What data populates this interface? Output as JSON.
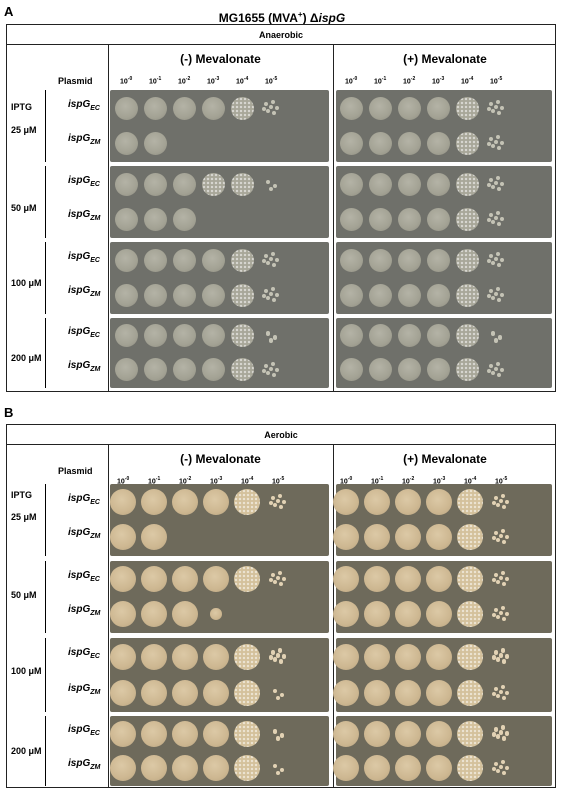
{
  "figure": {
    "panelA": {
      "letter": "A",
      "strain_title": "MG1655 (MVA",
      "strain_title_sup": "+",
      "strain_title_rest": ") ",
      "strain_delta": "Δ",
      "strain_gene": "ispG",
      "condition": "Anaerobic",
      "minus_mev": "(-) Mevalonate",
      "plus_mev": "(+) Mevalonate"
    },
    "panelB": {
      "letter": "B",
      "condition": "Aerobic",
      "minus_mev": "(-) Mevalonate",
      "plus_mev": "(+) Mevalonate"
    },
    "plasmid_label": "Plasmid",
    "iptg_label": "IPTG",
    "dilutions": [
      "10",
      "10",
      "10",
      "10",
      "10",
      "10"
    ],
    "dilution_exponents": [
      "-0",
      "-1",
      "-2",
      "-3",
      "-4",
      "-5"
    ],
    "iptg_levels": [
      "25 μM",
      "50 μM",
      "100 μM",
      "200 μM"
    ],
    "plasmid_base": "ispG",
    "plasmid_ec": "EC",
    "plasmid_zm": "ZM"
  }
}
